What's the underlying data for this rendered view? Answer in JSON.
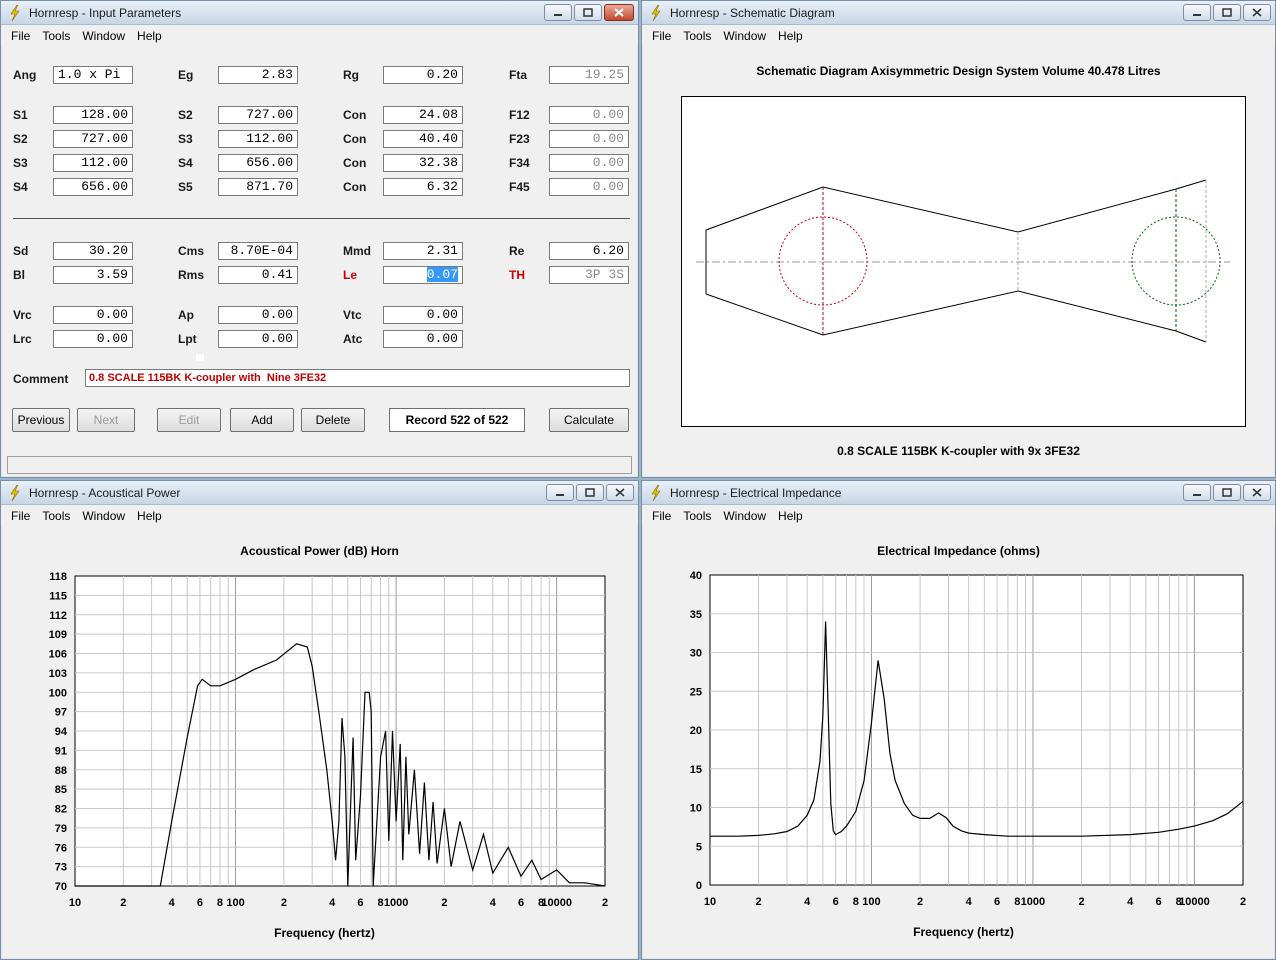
{
  "menu": {
    "file": "File",
    "tools": "Tools",
    "window": "Window",
    "help": "Help"
  },
  "windows": {
    "input": {
      "title": "Hornresp - Input Parameters"
    },
    "schematic": {
      "title": "Hornresp - Schematic Diagram"
    },
    "power": {
      "title": "Hornresp - Acoustical Power"
    },
    "impedance": {
      "title": "Hornresp - Electrical Impedance"
    }
  },
  "params": [
    {
      "label": "Ang",
      "value": "1.0 x Pi",
      "align": "left"
    },
    {
      "label": "Eg",
      "value": "2.83"
    },
    {
      "label": "Rg",
      "value": "0.20"
    },
    {
      "label": "Fta",
      "value": "19.25",
      "grey": true
    },
    {
      "label": "S1",
      "value": "128.00"
    },
    {
      "label": "S2",
      "value": "727.00"
    },
    {
      "label": "Con",
      "value": "24.08"
    },
    {
      "label": "F12",
      "value": "0.00",
      "grey": true
    },
    {
      "label": "S2",
      "value": "727.00"
    },
    {
      "label": "S3",
      "value": "112.00"
    },
    {
      "label": "Con",
      "value": "40.40"
    },
    {
      "label": "F23",
      "value": "0.00",
      "grey": true
    },
    {
      "label": "S3",
      "value": "112.00"
    },
    {
      "label": "S4",
      "value": "656.00"
    },
    {
      "label": "Con",
      "value": "32.38"
    },
    {
      "label": "F34",
      "value": "0.00",
      "grey": true
    },
    {
      "label": "S4",
      "value": "656.00"
    },
    {
      "label": "S5",
      "value": "871.70"
    },
    {
      "label": "Con",
      "value": "6.32"
    },
    {
      "label": "F45",
      "value": "0.00",
      "grey": true
    },
    {
      "label": "Sd",
      "value": "30.20"
    },
    {
      "label": "Cms",
      "value": "8.70E-04"
    },
    {
      "label": "Mmd",
      "value": "2.31"
    },
    {
      "label": "Re",
      "value": "6.20"
    },
    {
      "label": "Bl",
      "value": "3.59"
    },
    {
      "label": "Rms",
      "value": "0.41"
    },
    {
      "label": "Le",
      "value": "0.07",
      "red": true,
      "selected": true
    },
    {
      "label": "TH",
      "value": "3P 3S",
      "red": true,
      "grey": true
    },
    {
      "label": "Vrc",
      "value": "0.00"
    },
    {
      "label": "Ap",
      "value": "0.00"
    },
    {
      "label": "Vtc",
      "value": "0.00"
    },
    {
      "label": "Lrc",
      "value": "0.00"
    },
    {
      "label": "Lpt",
      "value": "0.00"
    },
    {
      "label": "Atc",
      "value": "0.00"
    }
  ],
  "comment": {
    "label": "Comment",
    "value": "0.8 SCALE 115BK K-coupler with  Nine 3FE32"
  },
  "buttons": {
    "previous": "Previous",
    "next": "Next",
    "edit": "Edit",
    "add": "Add",
    "delete": "Delete",
    "record": "Record 522 of 522",
    "calculate": "Calculate"
  },
  "schematic": {
    "header": "Schematic Diagram   Axisymmetric Design   System Volume 40.478 Litres",
    "footer": "0.8 SCALE 115BK K-coupler with  9x 3FE32"
  },
  "chart_data": [
    {
      "type": "line",
      "title": "Acoustical Power (dB)   Horn",
      "xlabel": "Frequency (hertz)",
      "ylabel": "",
      "xscale": "log",
      "xlim": [
        10,
        20000
      ],
      "ylim": [
        70,
        118
      ],
      "yticks": [
        "118",
        "115",
        "112",
        "109",
        "106",
        "103",
        "100",
        "97",
        "94",
        "91",
        "88",
        "85",
        "82",
        "79",
        "76",
        "73",
        "70"
      ],
      "xticks": [
        "10",
        "2",
        "4",
        "6",
        "8",
        "100",
        "2",
        "4",
        "6",
        "8",
        "1000",
        "2",
        "4",
        "6",
        "8",
        "10000",
        "2"
      ],
      "grid": true,
      "series": [
        {
          "color": "#000000",
          "x": [
            10,
            34,
            40,
            50,
            58,
            62,
            70,
            80,
            100,
            130,
            180,
            240,
            280,
            300,
            330,
            370,
            400,
            420,
            440,
            460,
            480,
            500,
            520,
            540,
            560,
            600,
            640,
            680,
            700,
            720,
            800,
            860,
            900,
            950,
            1000,
            1060,
            1100,
            1150,
            1200,
            1300,
            1400,
            1500,
            1600,
            1700,
            1800,
            2000,
            2200,
            2500,
            3000,
            3500,
            4000,
            5000,
            6000,
            7000,
            8000,
            10000,
            12000,
            15000,
            20000
          ],
          "y": [
            70,
            70,
            80,
            93,
            101,
            102,
            101,
            101,
            102,
            103.5,
            105,
            107.5,
            107,
            104,
            97,
            88,
            80,
            74,
            80,
            96,
            90,
            70,
            82,
            93,
            74,
            84,
            100,
            100,
            97,
            70,
            90,
            94,
            77,
            94,
            80,
            92,
            74,
            90,
            78,
            88,
            75,
            86,
            74,
            83,
            73.5,
            82,
            73,
            80,
            72.5,
            78,
            72,
            76,
            71.5,
            74,
            71,
            72.5,
            70.5,
            70.5,
            70
          ]
        }
      ]
    },
    {
      "type": "line",
      "title": "Electrical Impedance (ohms)",
      "xlabel": "Frequency (hertz)",
      "ylabel": "",
      "xscale": "log",
      "xlim": [
        10,
        20000
      ],
      "ylim": [
        0,
        40
      ],
      "yticks": [
        "40",
        "35",
        "30",
        "25",
        "20",
        "15",
        "10",
        "5",
        "0"
      ],
      "xticks": [
        "10",
        "2",
        "4",
        "6",
        "8",
        "100",
        "2",
        "4",
        "6",
        "8",
        "1000",
        "2",
        "4",
        "6",
        "8",
        "10000",
        "2"
      ],
      "grid": true,
      "series": [
        {
          "color": "#000000",
          "x": [
            10,
            15,
            20,
            25,
            30,
            35,
            40,
            44,
            48,
            50,
            52,
            54,
            56,
            58,
            60,
            65,
            70,
            80,
            90,
            100,
            110,
            120,
            130,
            140,
            160,
            180,
            200,
            230,
            260,
            290,
            320,
            360,
            400,
            500,
            700,
            1000,
            2000,
            4000,
            6000,
            8000,
            10000,
            13000,
            16000,
            20000
          ],
          "y": [
            6.3,
            6.3,
            6.4,
            6.6,
            6.9,
            7.6,
            9.0,
            11.0,
            16.0,
            22.0,
            34.0,
            22.0,
            10.5,
            7.0,
            6.5,
            6.9,
            7.6,
            9.5,
            13.5,
            21.0,
            29.0,
            24.0,
            17.0,
            13.5,
            10.5,
            9.0,
            8.6,
            8.6,
            9.3,
            8.7,
            7.6,
            7.0,
            6.7,
            6.5,
            6.3,
            6.3,
            6.3,
            6.5,
            6.8,
            7.2,
            7.6,
            8.3,
            9.2,
            10.8
          ]
        }
      ]
    }
  ]
}
